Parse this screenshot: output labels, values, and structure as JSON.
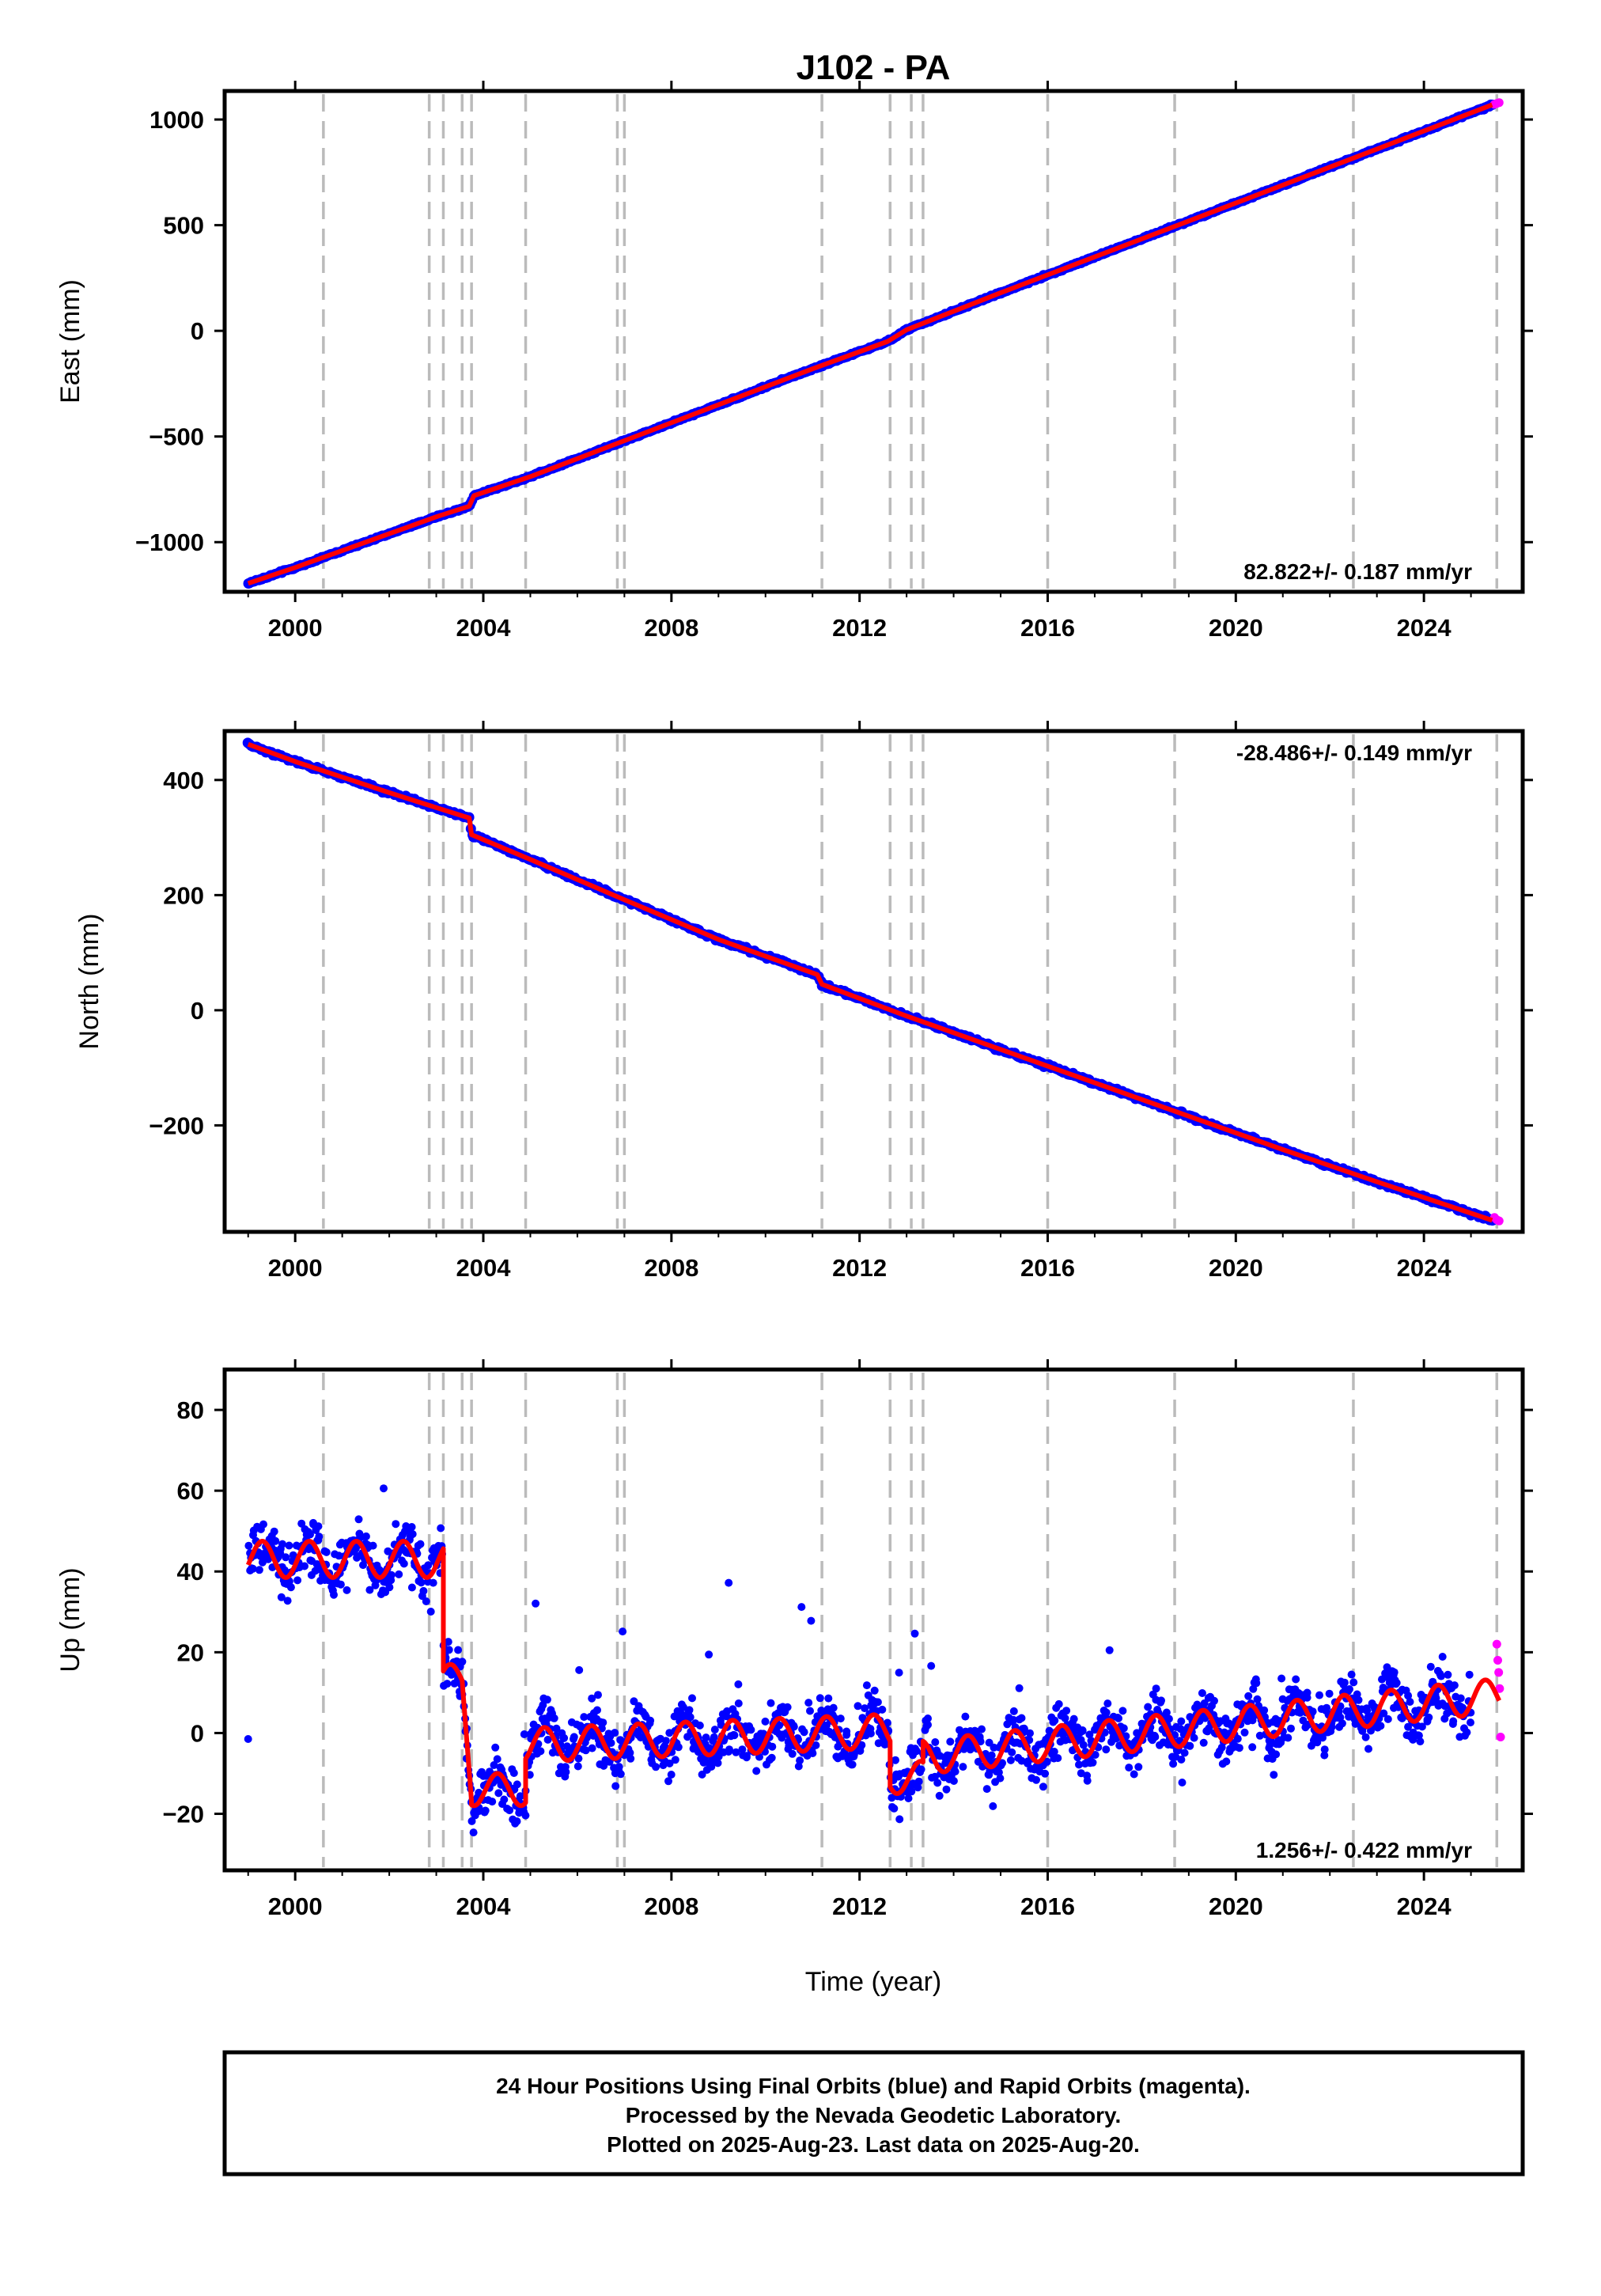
{
  "title": "J102 - PA",
  "xlabel": "Time (year)",
  "footer": {
    "line1": "24 Hour Positions Using Final Orbits (blue) and Rapid Orbits (magenta).",
    "line2": "Processed by the Nevada Geodetic Laboratory.",
    "line3": "Plotted on 2025-Aug-23. Last data on 2025-Aug-20."
  },
  "colors": {
    "final_orbits": "#0000ff",
    "rapid_orbits": "#ff00ff",
    "model": "#ff0000",
    "event_lines": "#bbbbbb",
    "frame": "#000000"
  },
  "chart_data": [
    {
      "type": "scatter",
      "panel": "east",
      "ylabel": "East (mm)",
      "rate_text": "82.822+/- 0.187 mm/yr",
      "rate_position": "bottom-right",
      "xlim": [
        1998.5,
        2026.1
      ],
      "ylim": [
        -1235,
        1135
      ],
      "x_ticks": [
        "2000",
        "2004",
        "2008",
        "2012",
        "2016",
        "2020",
        "2024"
      ],
      "y_ticks": [
        "1000",
        "500",
        "0",
        "−500",
        "−1000"
      ],
      "y_tick_values": [
        1000,
        500,
        0,
        -500,
        -1000
      ],
      "event_years": [
        2000.6,
        2002.85,
        2003.15,
        2003.55,
        2003.75,
        2004.9,
        2006.85,
        2007.0,
        2011.2,
        2012.65,
        2013.1,
        2013.35,
        2016.0,
        2018.7,
        2022.5,
        2025.55
      ],
      "series": [
        {
          "role": "final_orbits",
          "x": [
            1999.0,
            2000.0,
            2001.0,
            2002.0,
            2003.0,
            2003.7,
            2003.8,
            2005.0,
            2007.0,
            2009.0,
            2011.0,
            2012.6,
            2013.0,
            2015.0,
            2017.0,
            2019.0,
            2021.0,
            2023.0,
            2025.45
          ],
          "y": [
            -1195,
            -1120,
            -1040,
            -960,
            -880,
            -830,
            -780,
            -690,
            -520,
            -350,
            -180,
            -50,
            5,
            180,
            350,
            520,
            690,
            860,
            1070
          ]
        },
        {
          "role": "rapid_orbits",
          "x": [
            2025.5,
            2025.55,
            2025.6
          ],
          "y": [
            1072,
            1076,
            1080
          ]
        }
      ]
    },
    {
      "type": "scatter",
      "panel": "north",
      "ylabel": "North (mm)",
      "rate_text": "-28.486+/- 0.149 mm/yr",
      "rate_position": "top-right",
      "xlim": [
        1998.5,
        2026.1
      ],
      "ylim": [
        -385,
        485
      ],
      "x_ticks": [
        "2000",
        "2004",
        "2008",
        "2012",
        "2016",
        "2020",
        "2024"
      ],
      "y_ticks": [
        "400",
        "200",
        "0",
        "−200"
      ],
      "y_tick_values": [
        400,
        200,
        0,
        -200
      ],
      "event_years": [
        2000.6,
        2002.85,
        2003.15,
        2003.55,
        2003.75,
        2004.9,
        2006.85,
        2007.0,
        2011.2,
        2012.65,
        2013.1,
        2013.35,
        2016.0,
        2018.7,
        2022.5,
        2025.55
      ],
      "series": [
        {
          "role": "final_orbits",
          "x": [
            1999.0,
            2000.0,
            2001.0,
            2002.0,
            2003.0,
            2003.7,
            2003.75,
            2005.0,
            2007.0,
            2009.0,
            2011.1,
            2011.2,
            2013.0,
            2015.0,
            2017.0,
            2019.0,
            2021.0,
            2023.0,
            2025.45
          ],
          "y": [
            462,
            432,
            405,
            378,
            352,
            334,
            305,
            262,
            192,
            123,
            62,
            45,
            -10,
            -68,
            -126,
            -184,
            -242,
            -298,
            -365
          ]
        },
        {
          "role": "rapid_orbits",
          "x": [
            2025.5,
            2025.55,
            2025.6
          ],
          "y": [
            -360,
            -364,
            -366
          ]
        }
      ]
    },
    {
      "type": "scatter",
      "panel": "up",
      "ylabel": "Up (mm)",
      "rate_text": "1.256+/- 0.422 mm/yr",
      "rate_position": "bottom-right",
      "xlim": [
        1998.5,
        2026.1
      ],
      "ylim": [
        -34,
        90
      ],
      "x_ticks": [
        "2000",
        "2004",
        "2008",
        "2012",
        "2016",
        "2020",
        "2024"
      ],
      "y_ticks": [
        "80",
        "60",
        "40",
        "20",
        "0",
        "−20"
      ],
      "y_tick_values": [
        80,
        60,
        40,
        20,
        0,
        -20
      ],
      "event_years": [
        2000.6,
        2002.85,
        2003.15,
        2003.55,
        2003.75,
        2004.9,
        2006.85,
        2007.0,
        2011.2,
        2012.65,
        2013.1,
        2013.35,
        2016.0,
        2018.7,
        2022.5,
        2025.55
      ],
      "model_segments": [
        {
          "x0": 1999.0,
          "x1": 2003.15,
          "level": 43,
          "trend": 0,
          "amp": 4.5
        },
        {
          "x0": 2003.15,
          "x1": 2003.55,
          "level": 13,
          "trend": 0,
          "amp": 4
        },
        {
          "x0": 2003.55,
          "x1": 2003.75,
          "level": 13,
          "trend": -150,
          "amp": 0
        },
        {
          "x0": 2003.75,
          "x1": 2004.9,
          "level": -14,
          "trend": 0,
          "amp": 4
        },
        {
          "x0": 2004.9,
          "x1": 2012.65,
          "level": -3,
          "trend": 0.45,
          "amp": 4.2
        },
        {
          "x0": 2012.65,
          "x1": 2013.35,
          "level": -11,
          "trend": 0,
          "amp": 4
        },
        {
          "x0": 2013.35,
          "x1": 2025.6,
          "level": -6,
          "trend": 1.25,
          "amp": 4.2
        }
      ],
      "series": [
        {
          "role": "final_orbits",
          "x": [
            1999.0,
            2000.0,
            2001.0,
            2002.0,
            2003.0,
            2003.4,
            2004.0,
            2006.0,
            2008.0,
            2010.0,
            2012.0,
            2013.0,
            2015.0,
            2017.0,
            2019.0,
            2021.0,
            2023.0,
            2025.0
          ],
          "y": [
            42,
            44,
            42,
            45,
            43,
            13,
            -15,
            -3,
            -2,
            0,
            1,
            -10,
            -5,
            -3,
            -1,
            1,
            6,
            9
          ]
        },
        {
          "role": "rapid_orbits",
          "x": [
            2025.55,
            2025.57,
            2025.59,
            2025.61,
            2025.63
          ],
          "y": [
            22,
            18,
            15,
            11,
            -1
          ]
        }
      ]
    }
  ]
}
